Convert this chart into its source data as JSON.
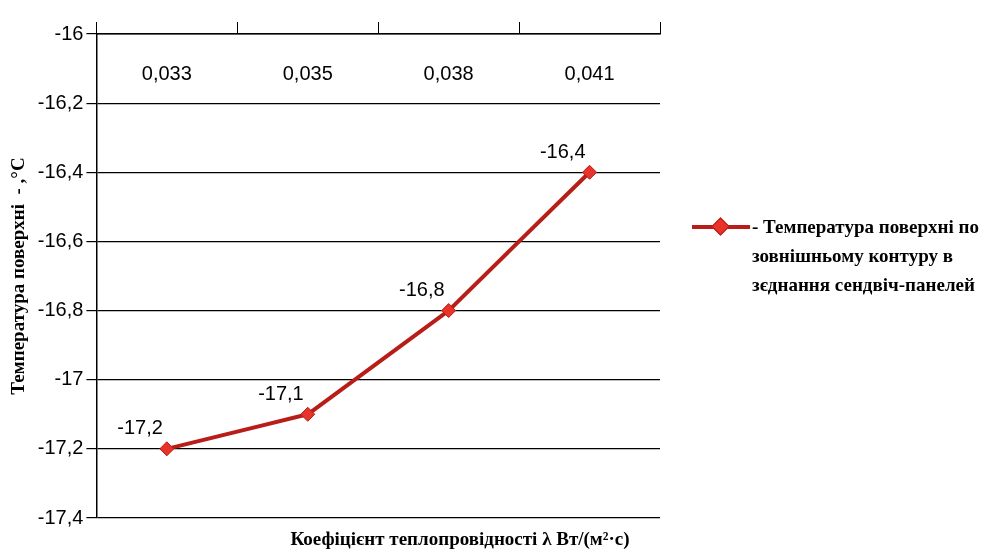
{
  "chart_data": {
    "type": "line",
    "xlabel": "Коефіцієнт теплопровідності  λ Вт/(м²·с)",
    "ylabel": "Температура поверхні  - ,°С",
    "categories": [
      "0,033",
      "0,035",
      "0,038",
      "0,041"
    ],
    "series": [
      {
        "name": "- Температура поверхні по зовнішньому контуру в зєднання сендвіч-панелей",
        "color": "#b81d18",
        "values": [
          -17.2,
          -17.1,
          -16.8,
          -16.4
        ],
        "value_labels": [
          "-17,2",
          "-17,1",
          "-16,8",
          "-16,4"
        ]
      }
    ],
    "ylim": [
      -17.4,
      -16
    ],
    "yticks": [
      {
        "value": -17.4,
        "label": "-17,4"
      },
      {
        "value": -17.2,
        "label": "-17,2"
      },
      {
        "value": -17,
        "label": "-17"
      },
      {
        "value": -16.8,
        "label": "-16,8"
      },
      {
        "value": -16.6,
        "label": "-16,6"
      },
      {
        "value": -16.4,
        "label": "-16,4"
      },
      {
        "value": -16.2,
        "label": "-16,2"
      },
      {
        "value": -16,
        "label": "-16"
      }
    ],
    "grid": "y",
    "legend": "right",
    "marker": "diamond",
    "line_style": "solid"
  }
}
